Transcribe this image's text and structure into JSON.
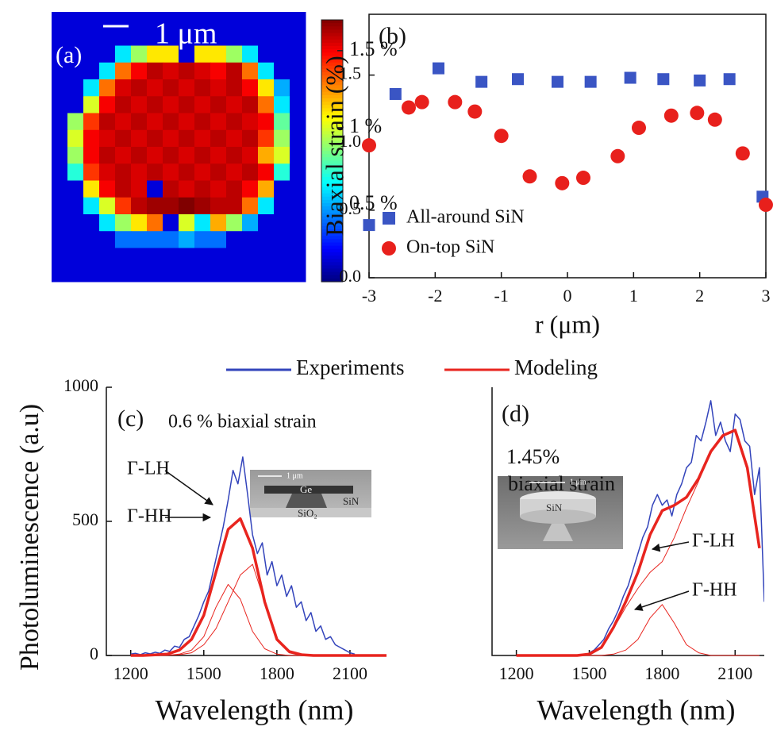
{
  "chart_data": [
    {
      "type": "heatmap",
      "label": "(a)",
      "scale_bar": "1 μm",
      "colormap": "jet",
      "clim": [
        0,
        1.7
      ],
      "colorbar_ticks": [
        {
          "value": 1.5,
          "label": "1.5 %"
        },
        {
          "value": 1,
          "label": "1 %"
        },
        {
          "value": 0.5,
          "label": "0.5 %"
        }
      ],
      "values": [
        [
          0.15,
          0.15,
          0.15,
          0.15,
          0.15,
          0.15,
          0.15,
          0.15,
          0.15,
          0.15,
          0.15,
          0.15,
          0.15,
          0.15,
          0.15,
          0.15
        ],
        [
          0.15,
          0.15,
          0.15,
          0.15,
          0.15,
          0.15,
          0.15,
          0.15,
          0.15,
          0.15,
          0.15,
          0.15,
          0.15,
          0.15,
          0.15,
          0.15
        ],
        [
          0.15,
          0.15,
          0.15,
          0.15,
          0.6,
          0.9,
          1.1,
          1.1,
          0.15,
          1.1,
          1.1,
          0.9,
          0.6,
          0.15,
          0.15,
          0.15
        ],
        [
          0.15,
          0.15,
          0.15,
          0.6,
          1.3,
          1.5,
          1.6,
          1.55,
          1.6,
          1.55,
          1.5,
          1.6,
          1.3,
          0.6,
          0.15,
          0.15
        ],
        [
          0.15,
          0.15,
          0.6,
          1.3,
          1.55,
          1.6,
          1.55,
          1.6,
          1.55,
          1.6,
          1.55,
          1.6,
          1.5,
          1.1,
          0.5,
          0.15
        ],
        [
          0.15,
          0.15,
          1.0,
          1.5,
          1.6,
          1.55,
          1.6,
          1.55,
          1.6,
          1.55,
          1.6,
          1.55,
          1.6,
          1.3,
          0.6,
          0.15
        ],
        [
          0.15,
          0.9,
          1.4,
          1.6,
          1.55,
          1.6,
          1.55,
          1.6,
          1.55,
          1.6,
          1.55,
          1.6,
          1.55,
          1.5,
          0.8,
          0.15
        ],
        [
          0.15,
          1.0,
          1.5,
          1.55,
          1.6,
          1.55,
          1.6,
          1.55,
          1.6,
          1.55,
          1.6,
          1.55,
          1.6,
          1.4,
          0.9,
          0.15
        ],
        [
          0.15,
          0.9,
          1.5,
          1.6,
          1.55,
          1.6,
          1.55,
          1.6,
          1.55,
          1.6,
          1.55,
          1.6,
          1.55,
          1.2,
          1.0,
          0.15
        ],
        [
          0.15,
          0.7,
          1.4,
          1.55,
          1.6,
          1.55,
          1.6,
          1.55,
          1.6,
          1.55,
          1.6,
          1.55,
          1.6,
          1.5,
          0.7,
          0.15
        ],
        [
          0.15,
          0.15,
          1.1,
          1.5,
          1.6,
          1.55,
          0.15,
          1.6,
          1.55,
          1.6,
          1.55,
          1.6,
          1.5,
          1.2,
          0.15,
          0.15
        ],
        [
          0.15,
          0.15,
          0.6,
          1.0,
          1.4,
          1.6,
          1.65,
          1.65,
          1.7,
          1.65,
          1.6,
          1.6,
          1.3,
          0.6,
          0.15,
          0.15
        ],
        [
          0.15,
          0.15,
          0.15,
          0.6,
          0.9,
          1.1,
          1.3,
          0.15,
          1.0,
          0.6,
          1.2,
          0.9,
          0.5,
          0.15,
          0.15,
          0.15
        ],
        [
          0.15,
          0.15,
          0.15,
          0.15,
          0.4,
          0.4,
          0.4,
          0.4,
          0.5,
          0.4,
          0.4,
          0.15,
          0.15,
          0.15,
          0.15,
          0.15
        ],
        [
          0.15,
          0.15,
          0.15,
          0.15,
          0.15,
          0.15,
          0.15,
          0.15,
          0.15,
          0.15,
          0.15,
          0.15,
          0.15,
          0.15,
          0.15,
          0.15
        ],
        [
          0.15,
          0.15,
          0.15,
          0.15,
          0.15,
          0.15,
          0.15,
          0.15,
          0.15,
          0.15,
          0.15,
          0.15,
          0.15,
          0.15,
          0.15,
          0.15
        ]
      ]
    },
    {
      "type": "scatter",
      "label": "(b)",
      "xlabel": "r (μm)",
      "ylabel": "Biaxial strain (%)",
      "xlim": [
        -3,
        3
      ],
      "ylim": [
        0,
        1.95
      ],
      "xticks": [
        -3,
        -2,
        -1,
        0,
        1,
        2,
        3
      ],
      "yticks": [
        {
          "value": 0,
          "label": "0.0"
        },
        {
          "value": 0.5,
          "label": "0.5"
        },
        {
          "value": 1,
          "label": "1.0"
        },
        {
          "value": 1.5,
          "label": "1.5"
        }
      ],
      "legend": "lower left",
      "series": [
        {
          "name": "All-around SiN",
          "color": "#3a55c4",
          "marker": "square",
          "x": [
            -3,
            -2.6,
            -1.95,
            -1.3,
            -0.75,
            -0.15,
            0.35,
            0.95,
            1.45,
            2.0,
            2.45,
            2.95
          ],
          "values": [
            0.39,
            1.36,
            1.55,
            1.45,
            1.47,
            1.45,
            1.45,
            1.48,
            1.47,
            1.46,
            1.47,
            0.6
          ]
        },
        {
          "name": "On-top SiN",
          "color": "#e8201c",
          "marker": "circle",
          "x": [
            -3,
            -2.4,
            -2.2,
            -1.7,
            -1.4,
            -1.0,
            -0.57,
            -0.08,
            0.24,
            0.76,
            1.08,
            1.57,
            1.96,
            2.23,
            2.65,
            3.0
          ],
          "values": [
            0.98,
            1.26,
            1.3,
            1.3,
            1.23,
            1.05,
            0.75,
            0.7,
            0.74,
            0.9,
            1.11,
            1.2,
            1.22,
            1.17,
            0.92,
            0.54
          ]
        }
      ]
    },
    {
      "type": "line",
      "label": "(c)",
      "xlabel": "Wavelength (nm)",
      "ylabel": "Photoluminescence (a.u)",
      "xlim": [
        1100,
        2250
      ],
      "ylim": [
        0,
        1000
      ],
      "xticks": [
        1200,
        1500,
        1800,
        2100
      ],
      "yticks": [
        0,
        500,
        1000
      ],
      "annotations": [
        "0.6 % biaxial strain",
        "Γ-LH",
        "Γ-HH"
      ],
      "inset": {
        "scale": "1 μm",
        "labels": [
          "Ge",
          "SiN",
          "SiO₂"
        ]
      },
      "series": [
        {
          "name": "Experiments",
          "color": "#3344bb",
          "width": 1.5,
          "x": [
            1200,
            1220,
            1240,
            1260,
            1280,
            1300,
            1320,
            1340,
            1360,
            1380,
            1400,
            1420,
            1440,
            1460,
            1480,
            1500,
            1520,
            1540,
            1560,
            1580,
            1600,
            1620,
            1640,
            1660,
            1680,
            1700,
            1720,
            1740,
            1760,
            1780,
            1800,
            1820,
            1840,
            1860,
            1880,
            1900,
            1920,
            1940,
            1960,
            1980,
            2000,
            2020,
            2040,
            2060,
            2080,
            2100,
            2120
          ],
          "values": [
            5,
            8,
            3,
            10,
            6,
            12,
            8,
            20,
            15,
            35,
            30,
            60,
            70,
            110,
            150,
            200,
            240,
            320,
            400,
            480,
            580,
            690,
            640,
            740,
            600,
            450,
            380,
            420,
            300,
            350,
            260,
            300,
            220,
            260,
            180,
            200,
            130,
            160,
            90,
            110,
            60,
            70,
            40,
            30,
            20,
            10,
            5
          ]
        },
        {
          "name": "Modeling",
          "color": "#e8251f",
          "width": 3.5,
          "x": [
            1200,
            1250,
            1300,
            1350,
            1400,
            1450,
            1500,
            1550,
            1600,
            1650,
            1700,
            1750,
            1800,
            1850,
            1900,
            1950,
            2000,
            2050,
            2100,
            2150,
            2200,
            2250
          ],
          "values": [
            0,
            0,
            2,
            5,
            20,
            60,
            150,
            310,
            470,
            510,
            400,
            200,
            60,
            15,
            3,
            0,
            0,
            0,
            0,
            0,
            0,
            0
          ]
        },
        {
          "color": "#e8251f",
          "width": 1,
          "x": [
            1200,
            1250,
            1300,
            1350,
            1400,
            1450,
            1500,
            1550,
            1600,
            1650,
            1700,
            1750,
            1800,
            1850,
            1900,
            1950,
            2000,
            2050,
            2100,
            2150,
            2200,
            2250
          ],
          "values": [
            0,
            0,
            0,
            1,
            3,
            10,
            40,
            100,
            200,
            300,
            340,
            200,
            60,
            10,
            0,
            0,
            0,
            0,
            0,
            0,
            0,
            0
          ]
        },
        {
          "color": "#e8251f",
          "width": 1,
          "x": [
            1200,
            1250,
            1300,
            1350,
            1400,
            1450,
            1500,
            1550,
            1600,
            1650,
            1700,
            1750,
            1800,
            1850,
            1900,
            1950,
            2000,
            2050,
            2100,
            2150,
            2200,
            2250
          ],
          "values": [
            0,
            0,
            0,
            1,
            5,
            20,
            70,
            180,
            265,
            210,
            90,
            25,
            5,
            0,
            0,
            0,
            0,
            0,
            0,
            0,
            0,
            0
          ]
        }
      ]
    },
    {
      "type": "line",
      "label": "(d)",
      "xlabel": "Wavelength (nm)",
      "xlim": [
        1100,
        2220
      ],
      "ylim": [
        0,
        1000
      ],
      "xticks": [
        1200,
        1500,
        1800,
        2100
      ],
      "annotations": [
        "1.45%",
        "biaxial strain",
        "Γ-LH",
        "Γ-HH"
      ],
      "inset": {
        "scale": "1 μm",
        "labels": [
          "SiN"
        ]
      },
      "series": [
        {
          "color": "#3344bb",
          "width": 1.5,
          "x": [
            1500,
            1520,
            1540,
            1560,
            1580,
            1600,
            1620,
            1640,
            1660,
            1680,
            1700,
            1720,
            1740,
            1760,
            1780,
            1800,
            1820,
            1840,
            1860,
            1880,
            1900,
            1920,
            1940,
            1960,
            1980,
            2000,
            2020,
            2040,
            2060,
            2080,
            2100,
            2120,
            2140,
            2160,
            2180,
            2200,
            2220
          ],
          "values": [
            10,
            20,
            40,
            60,
            100,
            130,
            170,
            220,
            260,
            320,
            380,
            440,
            480,
            560,
            600,
            560,
            580,
            520,
            600,
            640,
            700,
            720,
            820,
            800,
            870,
            950,
            820,
            870,
            800,
            760,
            900,
            880,
            800,
            780,
            600,
            700,
            200
          ]
        },
        {
          "color": "#e8251f",
          "width": 3.5,
          "x": [
            1200,
            1250,
            1300,
            1350,
            1400,
            1450,
            1500,
            1550,
            1600,
            1650,
            1700,
            1750,
            1800,
            1850,
            1900,
            1950,
            2000,
            2050,
            2100,
            2150,
            2200
          ],
          "values": [
            0,
            0,
            0,
            0,
            0,
            0,
            5,
            30,
            105,
            200,
            310,
            450,
            540,
            560,
            590,
            660,
            760,
            820,
            840,
            700,
            400
          ]
        },
        {
          "color": "#e8251f",
          "width": 1,
          "x": [
            1200,
            1250,
            1300,
            1350,
            1400,
            1450,
            1500,
            1550,
            1600,
            1650,
            1700,
            1750,
            1800,
            1850,
            1900,
            1950,
            2000,
            2050,
            2100,
            2150,
            2200
          ],
          "values": [
            0,
            0,
            0,
            0,
            0,
            0,
            5,
            30,
            100,
            180,
            250,
            310,
            350,
            440,
            550,
            650,
            760,
            820,
            840,
            700,
            400
          ]
        },
        {
          "color": "#e8251f",
          "width": 1,
          "x": [
            1200,
            1250,
            1300,
            1350,
            1400,
            1450,
            1500,
            1550,
            1600,
            1650,
            1700,
            1750,
            1800,
            1850,
            1900,
            1950,
            2000,
            2050,
            2100,
            2150,
            2200
          ],
          "values": [
            0,
            0,
            0,
            0,
            0,
            0,
            0,
            0,
            5,
            20,
            60,
            140,
            190,
            120,
            40,
            10,
            0,
            0,
            0,
            0,
            0
          ]
        }
      ]
    }
  ]
}
